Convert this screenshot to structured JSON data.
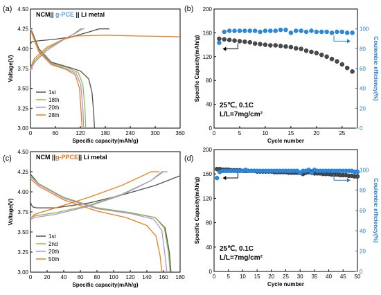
{
  "chart_data": [
    {
      "id": "a",
      "panel_label": "(a)",
      "type": "line",
      "title_parts": [
        {
          "text": "NCM|| ",
          "color": "#000000"
        },
        {
          "text": "g-PCE",
          "color": "#5b9bd5"
        },
        {
          "text": " || Li metal",
          "color": "#000000"
        }
      ],
      "xlabel": "Specific capacity(mAh/g)",
      "ylabel": "Voltage(V)",
      "xlim": [
        0,
        360
      ],
      "ylim": [
        3.0,
        4.5
      ],
      "xticks": [
        "0",
        "60",
        "120",
        "180",
        "240",
        "300",
        "360"
      ],
      "yticks": [
        "3.00",
        "3.25",
        "3.50",
        "3.75",
        "4.00",
        "4.25",
        "4.50"
      ],
      "legend_position": "bottom-left",
      "series": [
        {
          "name": "1st",
          "color": "#505050",
          "x": [
            0,
            5,
            20,
            60,
            100,
            140,
            160,
            190,
            190,
            150,
            120,
            60,
            30,
            10,
            0,
            150,
            152,
            153,
            153.5
          ],
          "y": [
            4.12,
            4.06,
            4.07,
            4.1,
            4.13,
            4.2,
            4.25,
            4.25,
            4.25,
            4.23,
            4.12,
            3.86,
            3.79,
            3.72,
            3.71,
            4.2,
            3.6,
            3.2,
            3.0
          ],
          "charge": {
            "x": [
              0,
              2,
              5,
              20,
              60,
              100,
              140,
              165,
              190
            ],
            "y": [
              4.05,
              4.08,
              4.09,
              4.1,
              4.12,
              4.15,
              4.21,
              4.25,
              4.25
            ]
          },
          "discharge": {
            "x": [
              0,
              5,
              20,
              50,
              90,
              120,
              140,
              148,
              152,
              154
            ],
            "y": [
              4.25,
              4.2,
              4.0,
              3.83,
              3.77,
              3.72,
              3.62,
              3.45,
              3.2,
              3.0
            ]
          }
        },
        {
          "name": "18th",
          "color": "#84c13d",
          "charge": {
            "x": [
              0,
              3,
              10,
              40,
              80,
              110,
              125,
              130
            ],
            "y": [
              3.74,
              3.78,
              3.85,
              4.0,
              4.12,
              4.2,
              4.25,
              4.25
            ]
          },
          "discharge": {
            "x": [
              0,
              5,
              20,
              50,
              90,
              115,
              126,
              131,
              133
            ],
            "y": [
              4.25,
              4.18,
              3.98,
              3.82,
              3.76,
              3.7,
              3.55,
              3.25,
              3.0
            ]
          }
        },
        {
          "name": "20th",
          "color": "#b38ee0",
          "charge": {
            "x": [
              0,
              3,
              10,
              40,
              75,
              105,
              120,
              126
            ],
            "y": [
              3.72,
              3.76,
              3.83,
              3.98,
              4.1,
              4.19,
              4.25,
              4.25
            ]
          },
          "discharge": {
            "x": [
              0,
              5,
              20,
              50,
              85,
              110,
              121,
              126,
              128
            ],
            "y": [
              4.25,
              4.17,
              3.97,
              3.81,
              3.75,
              3.69,
              3.55,
              3.25,
              3.0
            ]
          }
        },
        {
          "name": "28th",
          "color": "#f07c1a",
          "charge": {
            "x": [
              0,
              3,
              10,
              40,
              80,
              110,
              180,
              260,
              330,
              360
            ],
            "y": [
              3.75,
              3.8,
              3.88,
              4.02,
              4.12,
              4.16,
              4.17,
              4.16,
              4.155,
              4.15
            ]
          },
          "discharge": {
            "x": [
              0,
              5,
              20,
              50,
              85,
              108,
              118,
              122,
              124
            ],
            "y": [
              4.25,
              4.17,
              3.96,
              3.8,
              3.74,
              3.67,
              3.5,
              3.2,
              3.0
            ]
          }
        }
      ]
    },
    {
      "id": "b",
      "panel_label": "(b)",
      "type": "scatter",
      "xlabel": "Cycle number",
      "ylabel": "Specific Capacity(mAh/g)",
      "ylabel_right": "Coulombic efficiency(%)",
      "xlim": [
        0,
        28
      ],
      "ylim": [
        0,
        200
      ],
      "ylim_right": [
        0,
        120
      ],
      "xticks": [
        0,
        5,
        10,
        15,
        20,
        25
      ],
      "yticks": [
        0,
        40,
        80,
        120,
        160,
        200
      ],
      "yticks_right": [
        0,
        20,
        40,
        60,
        80,
        100
      ],
      "annotation_lines": [
        "25℃, 0.1C",
        "L/L=7mg/cm²"
      ],
      "series": [
        {
          "name": "capacity",
          "axis": "left",
          "color": "#4a4a4a",
          "x": [
            1,
            2,
            3,
            4,
            5,
            6,
            7,
            8,
            9,
            10,
            11,
            12,
            13,
            14,
            15,
            16,
            17,
            18,
            19,
            20,
            21,
            22,
            23,
            24,
            25,
            26,
            27
          ],
          "y": [
            150,
            149,
            148,
            147,
            146,
            145,
            144,
            142,
            141,
            140,
            139,
            139,
            138,
            137,
            136,
            134,
            133,
            130,
            128,
            126,
            123,
            120,
            116,
            112,
            107,
            101,
            95
          ]
        },
        {
          "name": "coulombic efficiency",
          "axis": "right",
          "color": "#2a8ae0",
          "x": [
            1,
            2,
            3,
            4,
            5,
            6,
            7,
            8,
            9,
            10,
            11,
            12,
            13,
            14,
            15,
            16,
            17,
            18,
            19,
            20,
            21,
            22,
            23,
            24,
            25,
            26,
            27
          ],
          "y": [
            86,
            97,
            98,
            98,
            98,
            98,
            98,
            98,
            97,
            98,
            98,
            98,
            99,
            99,
            96,
            98,
            98,
            97,
            98,
            97,
            97,
            97,
            96,
            97,
            97,
            96,
            96
          ]
        }
      ]
    },
    {
      "id": "c",
      "panel_label": "(c)",
      "type": "line",
      "title_parts": [
        {
          "text": "NCM ||",
          "color": "#000000"
        },
        {
          "text": "g-PPCE",
          "color": "#e8731a"
        },
        {
          "text": "|| Li metal",
          "color": "#000000"
        }
      ],
      "xlabel": "Specific capacity(mAh/g)",
      "ylabel": "Voltage(V)",
      "xlim": [
        0,
        180
      ],
      "ylim": [
        3.0,
        4.5
      ],
      "xticks": [
        "0",
        "20",
        "40",
        "60",
        "80",
        "100",
        "120",
        "140",
        "160",
        "180"
      ],
      "yticks": [
        "3.00",
        "3.25",
        "3.50",
        "3.75",
        "4.00",
        "4.25",
        "4.50"
      ],
      "legend_position": "bottom-left",
      "series": [
        {
          "name": "1st",
          "color": "#505050",
          "charge": {
            "x": [
              0,
              1,
              3,
              8,
              30,
              70,
              110,
              150,
              180
            ],
            "y": [
              3.88,
              3.84,
              3.81,
              3.8,
              3.8,
              3.86,
              3.96,
              4.08,
              4.2
            ]
          },
          "discharge": {
            "x": [
              0,
              10,
              40,
              80,
              120,
              150,
              162,
              167,
              169
            ],
            "y": [
              4.22,
              4.1,
              3.93,
              3.8,
              3.74,
              3.68,
              3.55,
              3.25,
              3.0
            ]
          }
        },
        {
          "name": "2nd",
          "color": "#84c13d",
          "charge": {
            "x": [
              0,
              1,
              5,
              30,
              70,
              110,
              145,
              160,
              165
            ],
            "y": [
              3.7,
              3.68,
              3.7,
              3.74,
              3.83,
              3.97,
              4.14,
              4.25,
              4.25
            ]
          },
          "discharge": {
            "x": [
              0,
              10,
              40,
              80,
              120,
              150,
              161,
              166,
              168
            ],
            "y": [
              4.2,
              4.1,
              3.93,
              3.8,
              3.74,
              3.68,
              3.55,
              3.25,
              3.0
            ]
          }
        },
        {
          "name": "20th",
          "color": "#b38ee0",
          "charge": {
            "x": [
              0,
              1,
              5,
              30,
              70,
              110,
              145,
              158,
              163
            ],
            "y": [
              3.68,
              3.66,
              3.68,
              3.72,
              3.82,
              3.96,
              4.14,
              4.25,
              4.25
            ]
          },
          "discharge": {
            "x": [
              0,
              10,
              40,
              80,
              120,
              148,
              158,
              162,
              164
            ],
            "y": [
              4.19,
              4.09,
              3.92,
              3.79,
              3.73,
              3.66,
              3.52,
              3.2,
              3.0
            ]
          }
        },
        {
          "name": "50th",
          "color": "#f07c1a",
          "charge": {
            "x": [
              0,
              1,
              5,
              30,
              70,
              110,
              135,
              145,
              155
            ],
            "y": [
              3.7,
              3.68,
              3.72,
              3.8,
              3.93,
              4.08,
              4.2,
              4.25,
              4.25
            ]
          },
          "discharge": {
            "x": [
              0,
              10,
              40,
              80,
              115,
              140,
              151,
              156,
              158
            ],
            "y": [
              4.16,
              4.07,
              3.9,
              3.76,
              3.68,
              3.58,
              3.45,
              3.2,
              3.0
            ]
          }
        }
      ]
    },
    {
      "id": "d",
      "panel_label": "(d)",
      "type": "scatter",
      "xlabel": "Cycle number",
      "ylabel": "Specific Capacity(mAh/g)",
      "ylabel_right": "Coulombic efficiency(%)",
      "xlim": [
        0,
        50
      ],
      "ylim": [
        0,
        200
      ],
      "ylim_right": [
        0,
        120
      ],
      "xticks": [
        0,
        5,
        10,
        15,
        20,
        25,
        30,
        35,
        40,
        45,
        50
      ],
      "yticks": [
        0,
        40,
        80,
        120,
        160,
        200
      ],
      "yticks_right": [
        0,
        20,
        40,
        60,
        80,
        100
      ],
      "annotation_lines": [
        "25℃, 0.1C",
        "L/L=7mg/cm²"
      ],
      "series": [
        {
          "name": "capacity",
          "axis": "left",
          "color": "#4a4a4a",
          "x": [
            1,
            2,
            3,
            4,
            5,
            6,
            7,
            8,
            9,
            10,
            11,
            12,
            13,
            14,
            15,
            16,
            17,
            18,
            19,
            20,
            21,
            22,
            23,
            24,
            25,
            26,
            27,
            28,
            29,
            30,
            31,
            32,
            33,
            34,
            35,
            36,
            37,
            38,
            39,
            40,
            41,
            42,
            43,
            44,
            45,
            46,
            47,
            48,
            49,
            50
          ],
          "y": [
            168,
            168,
            167,
            167,
            167,
            166,
            166,
            166,
            166,
            165,
            165,
            165,
            165,
            165,
            164,
            164,
            164,
            164,
            164,
            164,
            163,
            163,
            163,
            163,
            163,
            162,
            162,
            162,
            162,
            162,
            160,
            162,
            163,
            164,
            161,
            161,
            161,
            160,
            160,
            160,
            159,
            159,
            159,
            158,
            158,
            158,
            157,
            157,
            156,
            156
          ]
        },
        {
          "name": "coulombic efficiency",
          "axis": "right",
          "color": "#2a8ae0",
          "x": [
            1,
            2,
            3,
            4,
            5,
            6,
            7,
            8,
            9,
            10,
            11,
            12,
            13,
            14,
            15,
            16,
            17,
            18,
            19,
            20,
            21,
            22,
            23,
            24,
            25,
            26,
            27,
            28,
            29,
            30,
            31,
            32,
            33,
            34,
            35,
            36,
            37,
            38,
            39,
            40,
            41,
            42,
            43,
            44,
            45,
            46,
            47,
            48,
            49,
            50
          ],
          "y": [
            92,
            98,
            99,
            99,
            99,
            99,
            99,
            99,
            99,
            99,
            100,
            99,
            99,
            99,
            99,
            99,
            99,
            99,
            99,
            99,
            99,
            99,
            99,
            99,
            99,
            99,
            99,
            99,
            99,
            97,
            99,
            99,
            100,
            97,
            100,
            99,
            99,
            99,
            99,
            99,
            99,
            99,
            99,
            99,
            99,
            99,
            99,
            99,
            98,
            98
          ]
        }
      ]
    }
  ]
}
